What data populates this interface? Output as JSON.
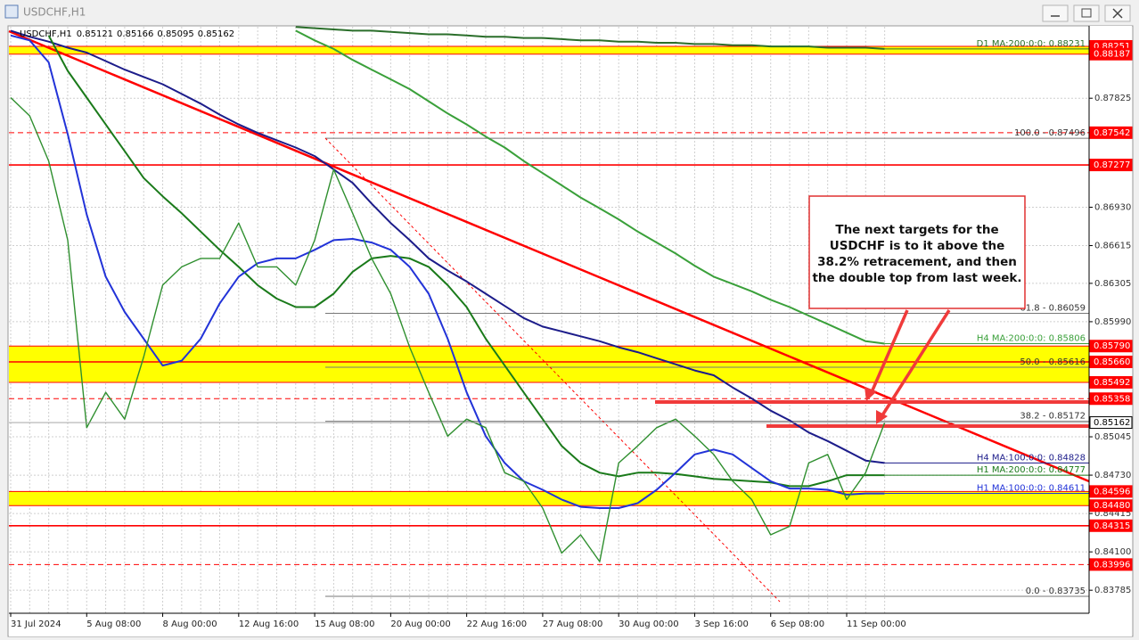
{
  "chart_data": {
    "type": "line",
    "title": "USDCHF,H1",
    "ohlc": [
      0.85121,
      0.85166,
      0.85095,
      0.85162
    ],
    "categories": [
      "31 Jul 2024",
      null,
      null,
      null,
      "5 Aug 08:00",
      null,
      null,
      null,
      "8 Aug 00:00",
      null,
      null,
      null,
      "12 Aug 16:00",
      null,
      null,
      null,
      "15 Aug 08:00",
      null,
      null,
      null,
      "20 Aug 00:00",
      null,
      null,
      null,
      "22 Aug 16:00",
      null,
      null,
      null,
      "27 Aug 08:00",
      null,
      null,
      null,
      "30 Aug 00:00",
      null,
      null,
      null,
      "3 Sep 16:00",
      null,
      null,
      null,
      "6 Sep 08:00",
      null,
      null,
      null,
      "11 Sep 00:00",
      null,
      null
    ],
    "values": [
      0.8783,
      0.8768,
      0.8731,
      0.8666,
      0.8512,
      0.8541,
      0.8519,
      0.857,
      0.8629,
      0.8644,
      0.8651,
      0.8651,
      0.868,
      0.8644,
      0.8644,
      0.8629,
      0.8666,
      0.8724,
      0.8688,
      0.8651,
      0.8622,
      0.8578,
      0.8541,
      0.8505,
      0.8519,
      0.8512,
      0.8475,
      0.8468,
      0.8446,
      0.8409,
      0.8424,
      0.8402,
      0.8483,
      0.8497,
      0.8512,
      0.8519,
      0.8505,
      0.849,
      0.8468,
      0.8453,
      0.8424,
      0.8431,
      0.8483,
      0.849,
      0.8453,
      0.8475,
      0.8516
    ],
    "color": "#2f8f2f",
    "series": [
      {
        "name": "D1 MA:200:0:0: 0.88231",
        "color": "#2a6e2a",
        "values": [
          null,
          null,
          null,
          null,
          null,
          null,
          null,
          null,
          null,
          null,
          null,
          null,
          null,
          null,
          null,
          0.8841,
          0.884,
          0.8839,
          0.8838,
          0.8838,
          0.8837,
          0.8836,
          0.8835,
          0.8835,
          0.8834,
          0.8833,
          0.8833,
          0.8832,
          0.8832,
          0.8831,
          0.883,
          0.883,
          0.8829,
          0.8829,
          0.8828,
          0.8828,
          0.8827,
          0.8827,
          0.8826,
          0.8826,
          0.8825,
          0.8825,
          0.8825,
          0.8824,
          0.8824,
          0.8824,
          0.8823
        ]
      },
      {
        "name": "H4 MA:200:0:0: 0.85806",
        "color": "#3aa03a",
        "values": [
          null,
          null,
          null,
          null,
          null,
          null,
          null,
          null,
          null,
          null,
          null,
          null,
          null,
          null,
          null,
          0.8838,
          0.883,
          0.8823,
          0.8814,
          0.8806,
          0.8798,
          0.879,
          0.878,
          0.877,
          0.8761,
          0.8751,
          0.8742,
          0.8731,
          0.8721,
          0.8711,
          0.8701,
          0.8692,
          0.8683,
          0.8673,
          0.8664,
          0.8655,
          0.8645,
          0.8636,
          0.863,
          0.8624,
          0.8617,
          0.8611,
          0.8604,
          0.8597,
          0.859,
          0.8583,
          0.8581
        ]
      },
      {
        "name": "H4 MA:100:0:0: 0.84828",
        "color": "#1c1c8a",
        "values": [
          0.8838,
          0.8833,
          0.8829,
          0.8824,
          0.882,
          0.8813,
          0.8806,
          0.88,
          0.8794,
          0.8786,
          0.8778,
          0.8769,
          0.8761,
          0.8754,
          0.8748,
          0.8742,
          0.8735,
          0.8724,
          0.8713,
          0.8696,
          0.868,
          0.8666,
          0.8651,
          0.8641,
          0.8632,
          0.8622,
          0.8612,
          0.8602,
          0.8595,
          0.8591,
          0.8587,
          0.8583,
          0.8578,
          0.8574,
          0.8569,
          0.8564,
          0.8559,
          0.8555,
          0.8545,
          0.8536,
          0.8526,
          0.8518,
          0.8508,
          0.8501,
          0.8493,
          0.8485,
          0.8483
        ]
      },
      {
        "name": "H1 MA:200:0:0: 0.84777",
        "color": "#1a7a1a",
        "values": [
          null,
          null,
          0.8834,
          0.8805,
          0.8783,
          0.8761,
          0.8739,
          0.8717,
          0.8702,
          0.8688,
          0.8673,
          0.8658,
          0.8644,
          0.8629,
          0.8618,
          0.8611,
          0.8611,
          0.8622,
          0.864,
          0.8651,
          0.8653,
          0.8651,
          0.8644,
          0.8629,
          0.8611,
          0.8585,
          0.8563,
          0.8541,
          0.8519,
          0.8497,
          0.8483,
          0.8475,
          0.8472,
          0.8475,
          0.8475,
          0.8474,
          0.8472,
          0.847,
          0.8469,
          0.8468,
          0.8467,
          0.8464,
          0.8464,
          0.8468,
          0.8473,
          0.8473,
          0.8473
        ]
      },
      {
        "name": "H1 MA:100:0:0: 0.84611",
        "color": "#2233d8",
        "values": [
          0.8834,
          0.883,
          0.8812,
          0.8753,
          0.8687,
          0.8636,
          0.8607,
          0.8585,
          0.8563,
          0.8567,
          0.8585,
          0.8614,
          0.8636,
          0.8647,
          0.8651,
          0.8651,
          0.8658,
          0.8666,
          0.8667,
          0.8664,
          0.8658,
          0.8644,
          0.8622,
          0.8585,
          0.8541,
          0.8505,
          0.8483,
          0.8468,
          0.8461,
          0.8453,
          0.8447,
          0.8446,
          0.8446,
          0.845,
          0.8461,
          0.8475,
          0.849,
          0.8494,
          0.849,
          0.8479,
          0.8468,
          0.8462,
          0.8462,
          0.8461,
          0.8457,
          0.8458,
          0.8458
        ]
      }
    ],
    "ylim": [
      0.83596,
      0.88412
    ],
    "yticks": [
      0.87825,
      {
        "value": 0.8693,
        "label": "0.86930"
      },
      0.86615,
      0.86305,
      {
        "value": 0.8599,
        "label": "0.85990"
      },
      0.85045,
      {
        "value": 0.8473,
        "label": "0.84730"
      },
      0.84415,
      {
        "value": 0.841,
        "label": "0.84100"
      },
      0.83785
    ],
    "grid": true,
    "level_color": "#ff0000",
    "zone_color": "#ffff00",
    "zones": [
      {
        "top": 0.88251,
        "bottom": 0.88187
      },
      {
        "top": {
          "value": 0.8579,
          "label": "0.85790"
        },
        "bottom": 0.85492
      },
      {
        "top": 0.84596,
        "bottom": {
          "value": 0.8448,
          "label": "0.84480"
        }
      }
    ],
    "levels": [
      {
        "value": 0.87542,
        "dashed": true
      },
      {
        "value": 0.87277,
        "dashed": false
      },
      {
        "value": 0.8566,
        "label": "0.85660",
        "dashed": false
      },
      {
        "value": 0.85358,
        "dashed": true
      },
      {
        "value": 0.84315,
        "dashed": false
      },
      {
        "value": 0.83996,
        "dashed": true
      }
    ],
    "fib_levels": [
      {
        "value": 0.87496,
        "label": "100.0 - 0.87496"
      },
      {
        "value": 0.86059,
        "label": "61.8 - 0.86059"
      },
      {
        "value": 0.85616,
        "label": "50.0 - 0.85616"
      },
      {
        "value": 0.85172,
        "label": "38.2 - 0.85172"
      },
      {
        "value": 0.83735,
        "label": "0.0 - 0.83735"
      }
    ],
    "annotation": [
      "The next targets for the",
      "USDCHF is to it above the",
      "38.2% retracement, and then",
      "the double top from last week."
    ]
  }
}
